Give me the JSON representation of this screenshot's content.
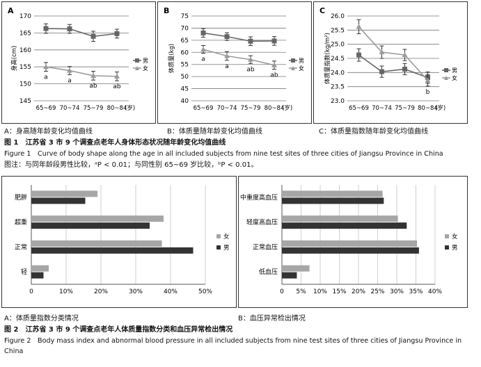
{
  "figure1": {
    "x_categories": [
      "65~69",
      "70~74",
      "75~79",
      "80~84"
    ],
    "x_unit": "(岁)",
    "legend": {
      "male": "男",
      "female": "女"
    },
    "panels": [
      {
        "letter": "A",
        "ylabel": "身高(cm)",
        "ylim": [
          145,
          170
        ],
        "yticks": [
          145,
          150,
          155,
          160,
          165,
          170
        ],
        "male": [
          166.3,
          166.2,
          164.0,
          164.8
        ],
        "male_err": [
          1.4,
          1.3,
          1.5,
          1.3
        ],
        "female": [
          155.0,
          153.9,
          152.4,
          152.2
        ],
        "female_err": [
          1.3,
          1.2,
          1.3,
          1.3
        ],
        "annotations": [
          "a",
          "a",
          "ab",
          "ab"
        ],
        "caption": "A：身高随年龄变化均值曲线"
      },
      {
        "letter": "B",
        "ylabel": "体质量(kg)",
        "ylim": [
          40,
          75
        ],
        "yticks": [
          40,
          45,
          50,
          55,
          60,
          65,
          70,
          75
        ],
        "male": [
          68.0,
          66.5,
          64.6,
          64.7
        ],
        "male_err": [
          1.8,
          1.6,
          1.8,
          1.8
        ],
        "female": [
          61.2,
          58.5,
          57.0,
          54.7
        ],
        "female_err": [
          1.6,
          1.8,
          1.6,
          1.7
        ],
        "annotations": [
          "a",
          "a",
          "ab",
          "ab"
        ],
        "caption": "B：体质量随年龄变化均值曲线"
      },
      {
        "letter": "C",
        "ylabel": "体质量指数(kg/m²)",
        "ylim": [
          23.0,
          26.0
        ],
        "yticks": [
          "23.0",
          "23.5",
          "24.0",
          "24.5",
          "25.0",
          "25.5",
          "26.0"
        ],
        "male": [
          24.62,
          24.03,
          24.12,
          23.82
        ],
        "male_err": [
          0.22,
          0.2,
          0.2,
          0.2
        ],
        "female": [
          25.62,
          24.72,
          24.62,
          23.72
        ],
        "female_err": [
          0.25,
          0.22,
          0.2,
          0.2
        ],
        "annotations": [
          "",
          "",
          "",
          "b"
        ],
        "caption": "C：体质量指数随年龄变化均值曲线"
      }
    ],
    "title_cn": "图 1　江苏省 3 市 9 个调查点老年人身体形态状况随年龄变化均值曲线",
    "title_en": "Figure 1　Curve of body shape along the age in all included subjects from nine test sites of three cities of Jiangsu Province in China",
    "note": "图注：与同年龄段男性比较，ᵃP < 0.01；与同性别 65~69 岁比较，ᵇP < 0.01。"
  },
  "figure2": {
    "legend": {
      "female": "女",
      "male": "男"
    },
    "panels": [
      {
        "letter": "A",
        "categories": [
          "肥胖",
          "超重",
          "正常",
          "轻"
        ],
        "female": [
          19,
          38,
          37.5,
          5
        ],
        "male": [
          15.5,
          34,
          46.5,
          3.5
        ],
        "xticks": [
          "0",
          "10%",
          "20%",
          "30%",
          "40%",
          "50%"
        ],
        "xmax": 50,
        "caption": "A：体质量指数分类情况"
      },
      {
        "letter": "B",
        "categories": [
          "中重度高血压",
          "轻度高血压",
          "正常血压",
          "低血压"
        ],
        "female": [
          26.3,
          30.3,
          35.3,
          7.2
        ],
        "male": [
          26.6,
          32.6,
          35.8,
          3.9
        ],
        "xticks": [
          "0",
          "5%",
          "10%",
          "15%",
          "20%",
          "25%",
          "30%",
          "35%",
          "40%"
        ],
        "xmax": 40,
        "caption": "B：血压异常检出情况"
      }
    ],
    "title_cn": "图 2　江苏省 3 市 9 个调查点老年人体质量指数分类和血压异常检出情况",
    "title_en_1": "Figure 2　Body mass index and abnormal blood pressure in all included subjects from nine test sites of three cities of Jiangsu Province in",
    "title_en_2": "China"
  },
  "chart_data": [
    {
      "type": "line",
      "categories": [
        "65~69",
        "70~74",
        "75~79",
        "80~84"
      ],
      "ylabel": "身高(cm)",
      "ylim": [
        145,
        170
      ],
      "series": [
        {
          "name": "男",
          "values": [
            166.3,
            166.2,
            164.0,
            164.8
          ]
        },
        {
          "name": "女",
          "values": [
            155.0,
            153.9,
            152.4,
            152.2
          ]
        }
      ]
    },
    {
      "type": "line",
      "categories": [
        "65~69",
        "70~74",
        "75~79",
        "80~84"
      ],
      "ylabel": "体质量(kg)",
      "ylim": [
        40,
        75
      ],
      "series": [
        {
          "name": "男",
          "values": [
            68.0,
            66.5,
            64.6,
            64.7
          ]
        },
        {
          "name": "女",
          "values": [
            61.2,
            58.5,
            57.0,
            54.7
          ]
        }
      ]
    },
    {
      "type": "line",
      "categories": [
        "65~69",
        "70~74",
        "75~79",
        "80~84"
      ],
      "ylabel": "体质量指数(kg/m²)",
      "ylim": [
        23.0,
        26.0
      ],
      "series": [
        {
          "name": "男",
          "values": [
            24.62,
            24.03,
            24.12,
            23.82
          ]
        },
        {
          "name": "女",
          "values": [
            25.62,
            24.72,
            24.62,
            23.72
          ]
        }
      ]
    },
    {
      "type": "bar",
      "categories": [
        "肥胖",
        "超重",
        "正常",
        "轻"
      ],
      "xlim": [
        0,
        50
      ],
      "series": [
        {
          "name": "女",
          "values": [
            19,
            38,
            37.5,
            5
          ]
        },
        {
          "name": "男",
          "values": [
            15.5,
            34,
            46.5,
            3.5
          ]
        }
      ]
    },
    {
      "type": "bar",
      "categories": [
        "中重度高血压",
        "轻度高血压",
        "正常血压",
        "低血压"
      ],
      "xlim": [
        0,
        40
      ],
      "series": [
        {
          "name": "女",
          "values": [
            26.3,
            30.3,
            35.3,
            7.2
          ]
        },
        {
          "name": "男",
          "values": [
            26.6,
            32.6,
            35.8,
            3.9
          ]
        }
      ]
    }
  ]
}
